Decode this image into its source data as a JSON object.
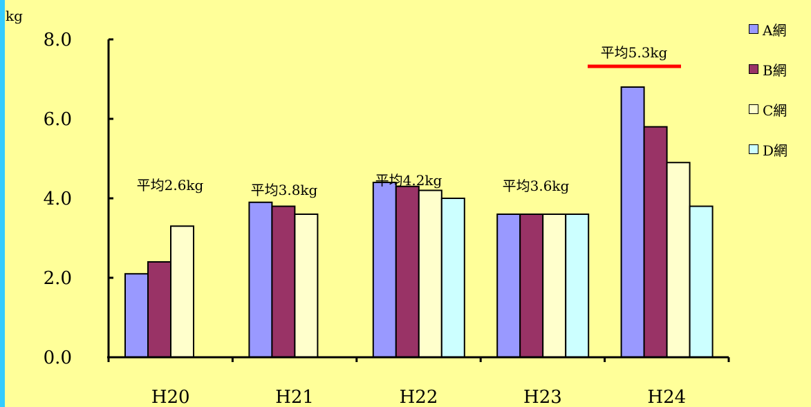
{
  "chart_data": {
    "type": "bar",
    "ylabel": "kg",
    "ylim": [
      0,
      8
    ],
    "yticks": [
      "0.0",
      "2.0",
      "4.0",
      "6.0",
      "8.0"
    ],
    "categories": [
      "H20",
      "H21",
      "H22",
      "H23",
      "H24"
    ],
    "series": [
      {
        "name": "A網",
        "color": "#9999FF",
        "values": [
          2.1,
          3.9,
          4.4,
          3.6,
          6.8
        ]
      },
      {
        "name": "B網",
        "color": "#993366",
        "values": [
          2.4,
          3.8,
          4.3,
          3.6,
          5.8
        ]
      },
      {
        "name": "C網",
        "color": "#FFFFCC",
        "values": [
          3.3,
          3.6,
          4.2,
          3.6,
          4.9
        ]
      },
      {
        "name": "D網",
        "color": "#CCFFFF",
        "values": [
          null,
          null,
          4.0,
          3.6,
          3.8
        ]
      }
    ],
    "annotations": [
      "平均2.6kg",
      "平均3.8kg",
      "平均4.2kg",
      "平均3.6kg",
      "平均5.3kg"
    ],
    "highlight_color": "#FF0000",
    "background_color": "#FFFF99",
    "legend": "right"
  }
}
